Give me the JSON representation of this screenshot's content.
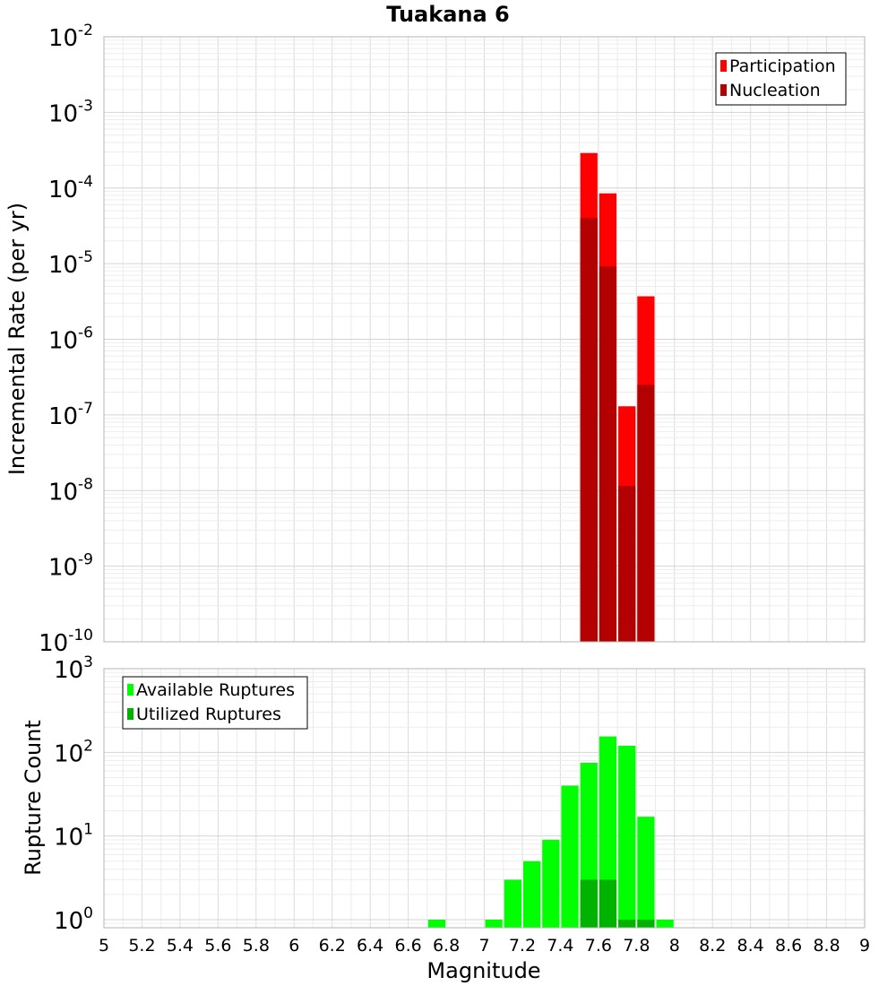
{
  "title": "Tuakana 6",
  "chart_data": [
    {
      "type": "bar",
      "ylabel": "Incremental Rate (per yr)",
      "yscale": "log",
      "ylim": [
        1e-10,
        0.01
      ],
      "xlim": [
        5,
        9
      ],
      "yticks": [
        {
          "base": "10",
          "exp": "-10"
        },
        {
          "base": "10",
          "exp": "-9"
        },
        {
          "base": "10",
          "exp": "-8"
        },
        {
          "base": "10",
          "exp": "-7"
        },
        {
          "base": "10",
          "exp": "-6"
        },
        {
          "base": "10",
          "exp": "-5"
        },
        {
          "base": "10",
          "exp": "-4"
        },
        {
          "base": "10",
          "exp": "-3"
        },
        {
          "base": "10",
          "exp": "-2"
        }
      ],
      "grid": true,
      "legend_position": "top-right",
      "bin_width": 0.1,
      "series": [
        {
          "name": "Participation",
          "color": "#ff0000",
          "x": [
            7.55,
            7.65,
            7.75,
            7.85
          ],
          "values": [
            0.00029,
            8.5e-05,
            1.3e-07,
            3.7e-06
          ]
        },
        {
          "name": "Nucleation",
          "color": "#b30000",
          "x": [
            7.55,
            7.65,
            7.75,
            7.85
          ],
          "values": [
            4e-05,
            9.2e-06,
            1.15e-08,
            2.5e-07
          ]
        }
      ]
    },
    {
      "type": "bar",
      "xlabel": "Magnitude",
      "ylabel": "Rupture Count",
      "yscale": "log",
      "ylim": [
        0.8,
        1000
      ],
      "xlim": [
        5,
        9
      ],
      "xticks": [
        "5",
        "5.2",
        "5.4",
        "5.6",
        "5.8",
        "6",
        "6.2",
        "6.4",
        "6.6",
        "6.8",
        "7",
        "7.2",
        "7.4",
        "7.6",
        "7.8",
        "8",
        "8.2",
        "8.4",
        "8.6",
        "8.8",
        "9"
      ],
      "yticks": [
        {
          "base": "10",
          "exp": "0"
        },
        {
          "base": "10",
          "exp": "1"
        },
        {
          "base": "10",
          "exp": "2"
        },
        {
          "base": "10",
          "exp": "3"
        }
      ],
      "grid": true,
      "legend_position": "top-left",
      "bin_width": 0.1,
      "series": [
        {
          "name": "Available Ruptures",
          "color": "#00ff00",
          "x": [
            6.75,
            7.05,
            7.15,
            7.25,
            7.35,
            7.45,
            7.55,
            7.65,
            7.75,
            7.85,
            7.95
          ],
          "values": [
            1,
            1,
            3,
            5,
            9,
            40,
            75,
            155,
            120,
            17,
            1
          ]
        },
        {
          "name": "Utilized Ruptures",
          "color": "#00b300",
          "x": [
            7.55,
            7.65,
            7.75,
            7.85
          ],
          "values": [
            3,
            3,
            1,
            1
          ]
        }
      ]
    }
  ]
}
